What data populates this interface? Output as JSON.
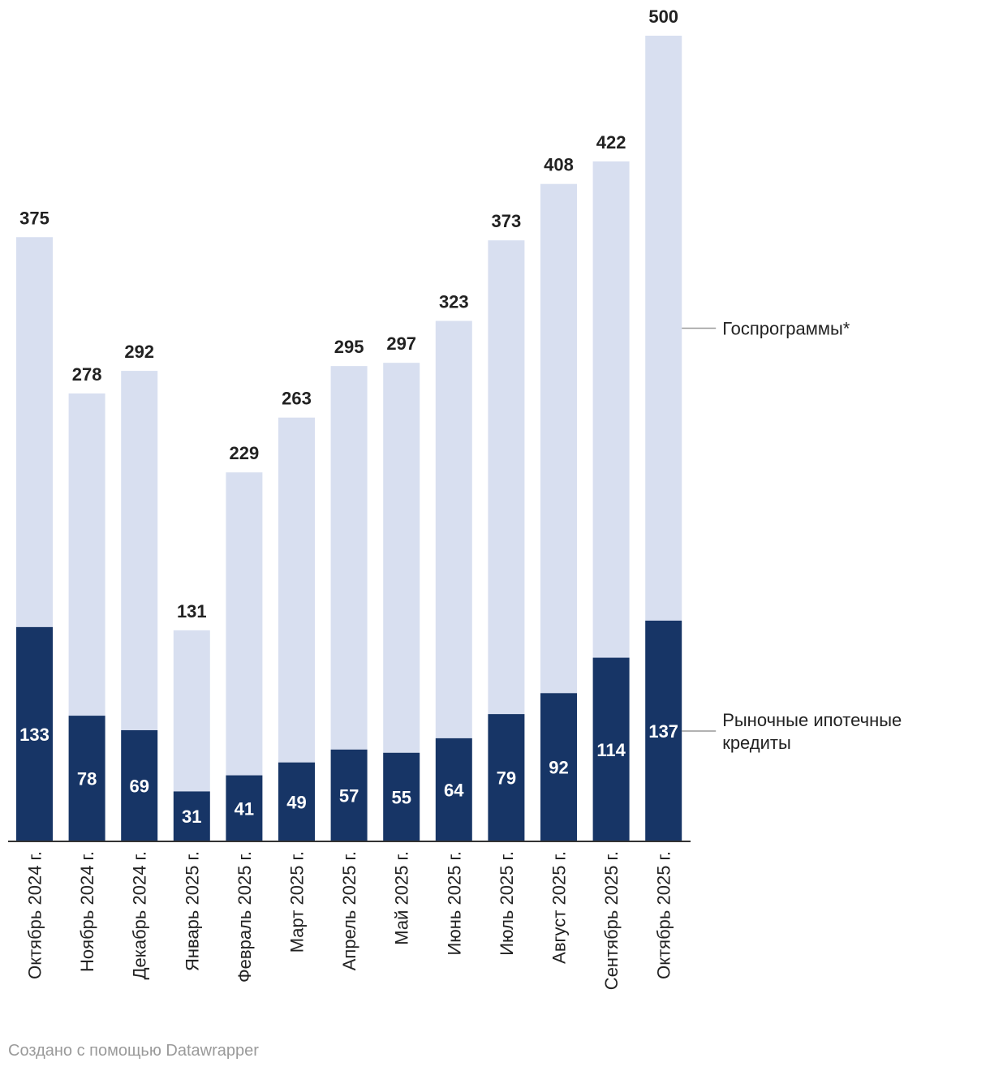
{
  "chart_data": {
    "type": "bar",
    "stacked": true,
    "categories": [
      "Октябрь 2024 г.",
      "Ноябрь 2024 г.",
      "Декабрь 2024 г.",
      "Январь 2025 г.",
      "Февраль 2025 г.",
      "Март 2025 г.",
      "Апрель 2025 г.",
      "Май 2025 г.",
      "Июнь 2025 г.",
      "Июль 2025 г.",
      "Август 2025 г.",
      "Сентябрь 2025 г.",
      "Октябрь 2025 г."
    ],
    "totals": [
      375,
      278,
      292,
      131,
      229,
      263,
      295,
      297,
      323,
      373,
      408,
      422,
      500
    ],
    "series": [
      {
        "name": "Рыночные ипотечные кредиты",
        "name_lines": [
          "Рыночные ипотечные",
          "кредиты"
        ],
        "color": "#173566",
        "values": [
          133,
          78,
          69,
          31,
          41,
          49,
          57,
          55,
          64,
          79,
          92,
          114,
          137
        ]
      },
      {
        "name": "Госпрограммы*",
        "color": "#d8dff0",
        "values": [
          242,
          200,
          223,
          100,
          188,
          214,
          238,
          242,
          259,
          294,
          316,
          308,
          363
        ]
      }
    ],
    "ylim": [
      0,
      500
    ],
    "legend": "right, direct labels"
  },
  "footer": "Создано с помощью Datawrapper"
}
